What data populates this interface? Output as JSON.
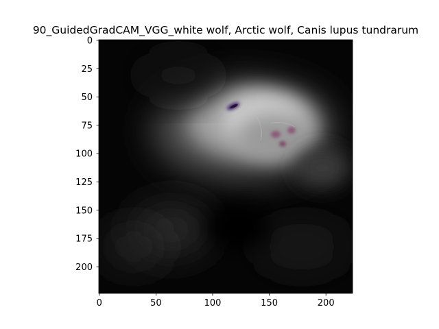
{
  "figure": {
    "title": "90_GuidedGradCAM_VGG_white wolf, Arctic wolf, Canis lupus tundrarum"
  },
  "image": {
    "description": "Guided Grad-CAM saliency map",
    "subject": "white wolf",
    "colormap": "grayscale with faint purple/pink highlights"
  },
  "axes": {
    "x_ticks": [
      "0",
      "50",
      "100",
      "150",
      "200"
    ],
    "y_ticks": [
      "0",
      "25",
      "50",
      "75",
      "100",
      "125",
      "150",
      "175",
      "200"
    ],
    "x_range": [
      0,
      224
    ],
    "y_range": [
      0,
      224
    ],
    "y_inverted": true
  },
  "colors": {
    "background": "#ffffff",
    "axis": "#000000",
    "image_base": "#050505",
    "glow": "#d8d8d8",
    "highlight_purple": "#4a2a6a",
    "highlight_pink": "#8a5a78"
  }
}
